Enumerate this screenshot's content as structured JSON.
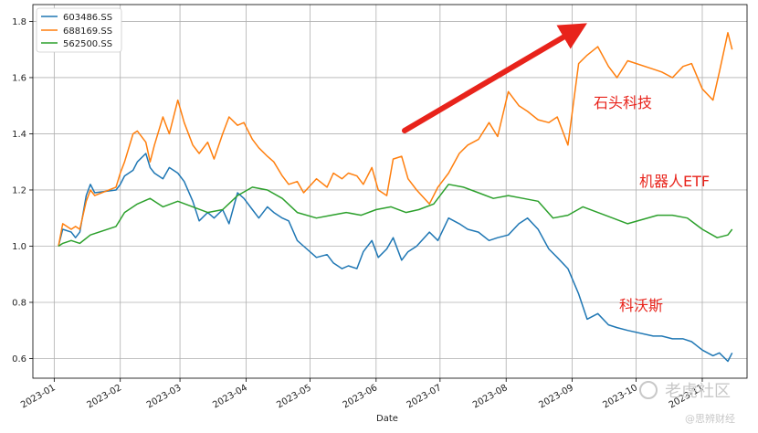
{
  "chart_data": {
    "type": "line",
    "title": "",
    "xlabel": "Date",
    "ylabel": "",
    "ylim": [
      0.53,
      1.86
    ],
    "y_ticks": [
      "0.6",
      "0.8",
      "1.0",
      "1.2",
      "1.4",
      "1.6",
      "1.8"
    ],
    "x_ticks": [
      "2023-01",
      "2023-02",
      "2023-03",
      "2023-04",
      "2023-05",
      "2023-06",
      "2023-07",
      "2023-08",
      "2023-09",
      "2023-10",
      "2023-11"
    ],
    "grid": true,
    "legend_position": "top-left",
    "colors": {
      "603486.SS": "#1f77b4",
      "688169.SS": "#ff7f0e",
      "562500.SS": "#2ca02c",
      "annotation": "#e8231b"
    },
    "series": [
      {
        "name": "603486.SS",
        "x": [
          "2023-01-03",
          "2023-01-05",
          "2023-01-09",
          "2023-01-11",
          "2023-01-13",
          "2023-01-16",
          "2023-01-18",
          "2023-01-20",
          "2023-01-30",
          "2023-02-01",
          "2023-02-03",
          "2023-02-07",
          "2023-02-09",
          "2023-02-13",
          "2023-02-15",
          "2023-02-17",
          "2023-02-21",
          "2023-02-24",
          "2023-02-28",
          "2023-03-03",
          "2023-03-07",
          "2023-03-10",
          "2023-03-14",
          "2023-03-17",
          "2023-03-21",
          "2023-03-24",
          "2023-03-28",
          "2023-03-31",
          "2023-04-04",
          "2023-04-07",
          "2023-04-11",
          "2023-04-14",
          "2023-04-18",
          "2023-04-21",
          "2023-04-25",
          "2023-04-28",
          "2023-05-04",
          "2023-05-09",
          "2023-05-12",
          "2023-05-16",
          "2023-05-19",
          "2023-05-23",
          "2023-05-26",
          "2023-05-30",
          "2023-06-02",
          "2023-06-06",
          "2023-06-09",
          "2023-06-13",
          "2023-06-16",
          "2023-06-20",
          "2023-06-26",
          "2023-06-30",
          "2023-07-05",
          "2023-07-10",
          "2023-07-14",
          "2023-07-19",
          "2023-07-24",
          "2023-07-28",
          "2023-08-02",
          "2023-08-07",
          "2023-08-11",
          "2023-08-16",
          "2023-08-21",
          "2023-08-25",
          "2023-08-30",
          "2023-09-04",
          "2023-09-08",
          "2023-09-13",
          "2023-09-18",
          "2023-09-22",
          "2023-09-27",
          "2023-10-09",
          "2023-10-13",
          "2023-10-18",
          "2023-10-23",
          "2023-10-27",
          "2023-11-01",
          "2023-11-06",
          "2023-11-09",
          "2023-11-13",
          "2023-11-15"
        ],
        "values": [
          1.0,
          1.06,
          1.05,
          1.03,
          1.05,
          1.18,
          1.22,
          1.19,
          1.2,
          1.22,
          1.25,
          1.27,
          1.3,
          1.33,
          1.28,
          1.26,
          1.24,
          1.28,
          1.26,
          1.23,
          1.16,
          1.09,
          1.12,
          1.1,
          1.13,
          1.08,
          1.19,
          1.17,
          1.13,
          1.1,
          1.14,
          1.12,
          1.1,
          1.09,
          1.02,
          1.0,
          0.96,
          0.97,
          0.94,
          0.92,
          0.93,
          0.92,
          0.98,
          1.02,
          0.96,
          0.99,
          1.03,
          0.95,
          0.98,
          1.0,
          1.05,
          1.02,
          1.1,
          1.08,
          1.06,
          1.05,
          1.02,
          1.03,
          1.04,
          1.08,
          1.1,
          1.06,
          0.99,
          0.96,
          0.92,
          0.83,
          0.74,
          0.76,
          0.72,
          0.71,
          0.7,
          0.68,
          0.68,
          0.67,
          0.67,
          0.66,
          0.63,
          0.61,
          0.62,
          0.59,
          0.62
        ]
      },
      {
        "name": "688169.SS",
        "x": [
          "2023-01-03",
          "2023-01-05",
          "2023-01-09",
          "2023-01-11",
          "2023-01-13",
          "2023-01-16",
          "2023-01-18",
          "2023-01-20",
          "2023-01-30",
          "2023-02-01",
          "2023-02-03",
          "2023-02-07",
          "2023-02-09",
          "2023-02-13",
          "2023-02-15",
          "2023-02-17",
          "2023-02-21",
          "2023-02-24",
          "2023-02-28",
          "2023-03-03",
          "2023-03-07",
          "2023-03-10",
          "2023-03-14",
          "2023-03-17",
          "2023-03-21",
          "2023-03-24",
          "2023-03-28",
          "2023-03-31",
          "2023-04-04",
          "2023-04-07",
          "2023-04-11",
          "2023-04-14",
          "2023-04-18",
          "2023-04-21",
          "2023-04-25",
          "2023-04-28",
          "2023-05-04",
          "2023-05-09",
          "2023-05-12",
          "2023-05-16",
          "2023-05-19",
          "2023-05-23",
          "2023-05-26",
          "2023-05-30",
          "2023-06-02",
          "2023-06-06",
          "2023-06-09",
          "2023-06-13",
          "2023-06-16",
          "2023-06-20",
          "2023-06-26",
          "2023-06-30",
          "2023-07-05",
          "2023-07-10",
          "2023-07-14",
          "2023-07-19",
          "2023-07-24",
          "2023-07-28",
          "2023-08-02",
          "2023-08-07",
          "2023-08-11",
          "2023-08-16",
          "2023-08-21",
          "2023-08-25",
          "2023-08-30",
          "2023-09-04",
          "2023-09-08",
          "2023-09-13",
          "2023-09-18",
          "2023-09-22",
          "2023-09-27",
          "2023-10-09",
          "2023-10-13",
          "2023-10-18",
          "2023-10-23",
          "2023-10-27",
          "2023-11-01",
          "2023-11-06",
          "2023-11-09",
          "2023-11-13",
          "2023-11-15"
        ],
        "values": [
          1.0,
          1.08,
          1.06,
          1.07,
          1.06,
          1.16,
          1.2,
          1.18,
          1.21,
          1.26,
          1.3,
          1.4,
          1.41,
          1.37,
          1.3,
          1.36,
          1.46,
          1.4,
          1.52,
          1.44,
          1.36,
          1.33,
          1.37,
          1.31,
          1.4,
          1.46,
          1.43,
          1.44,
          1.38,
          1.35,
          1.32,
          1.3,
          1.25,
          1.22,
          1.23,
          1.19,
          1.24,
          1.21,
          1.26,
          1.24,
          1.26,
          1.25,
          1.22,
          1.28,
          1.2,
          1.18,
          1.31,
          1.32,
          1.24,
          1.2,
          1.15,
          1.21,
          1.26,
          1.33,
          1.36,
          1.38,
          1.44,
          1.39,
          1.55,
          1.5,
          1.48,
          1.45,
          1.44,
          1.46,
          1.36,
          1.65,
          1.68,
          1.71,
          1.64,
          1.6,
          1.66,
          1.63,
          1.62,
          1.6,
          1.64,
          1.65,
          1.56,
          1.52,
          1.62,
          1.76,
          1.7
        ]
      },
      {
        "name": "562500.SS",
        "x": [
          "2023-01-03",
          "2023-01-05",
          "2023-01-09",
          "2023-01-13",
          "2023-01-18",
          "2023-01-30",
          "2023-02-03",
          "2023-02-09",
          "2023-02-15",
          "2023-02-21",
          "2023-02-28",
          "2023-03-07",
          "2023-03-14",
          "2023-03-21",
          "2023-03-28",
          "2023-04-04",
          "2023-04-11",
          "2023-04-18",
          "2023-04-25",
          "2023-05-04",
          "2023-05-11",
          "2023-05-18",
          "2023-05-25",
          "2023-06-01",
          "2023-06-08",
          "2023-06-15",
          "2023-06-21",
          "2023-06-28",
          "2023-07-05",
          "2023-07-12",
          "2023-07-19",
          "2023-07-26",
          "2023-08-02",
          "2023-08-09",
          "2023-08-16",
          "2023-08-23",
          "2023-08-30",
          "2023-09-06",
          "2023-09-13",
          "2023-09-20",
          "2023-09-27",
          "2023-10-11",
          "2023-10-18",
          "2023-10-25",
          "2023-11-01",
          "2023-11-08",
          "2023-11-13",
          "2023-11-15"
        ],
        "values": [
          1.0,
          1.01,
          1.02,
          1.01,
          1.04,
          1.07,
          1.12,
          1.15,
          1.17,
          1.14,
          1.16,
          1.14,
          1.12,
          1.13,
          1.18,
          1.21,
          1.2,
          1.17,
          1.12,
          1.1,
          1.11,
          1.12,
          1.11,
          1.13,
          1.14,
          1.12,
          1.13,
          1.15,
          1.22,
          1.21,
          1.19,
          1.17,
          1.18,
          1.17,
          1.16,
          1.1,
          1.11,
          1.14,
          1.12,
          1.1,
          1.08,
          1.11,
          1.11,
          1.1,
          1.06,
          1.03,
          1.04,
          1.06
        ]
      }
    ],
    "annotations": [
      {
        "text": "石头科技"
      },
      {
        "text": "机器人ETF"
      },
      {
        "text": "科沃斯"
      }
    ]
  },
  "watermark": {
    "main": "老虎社区",
    "sub": "@思辨财经"
  }
}
